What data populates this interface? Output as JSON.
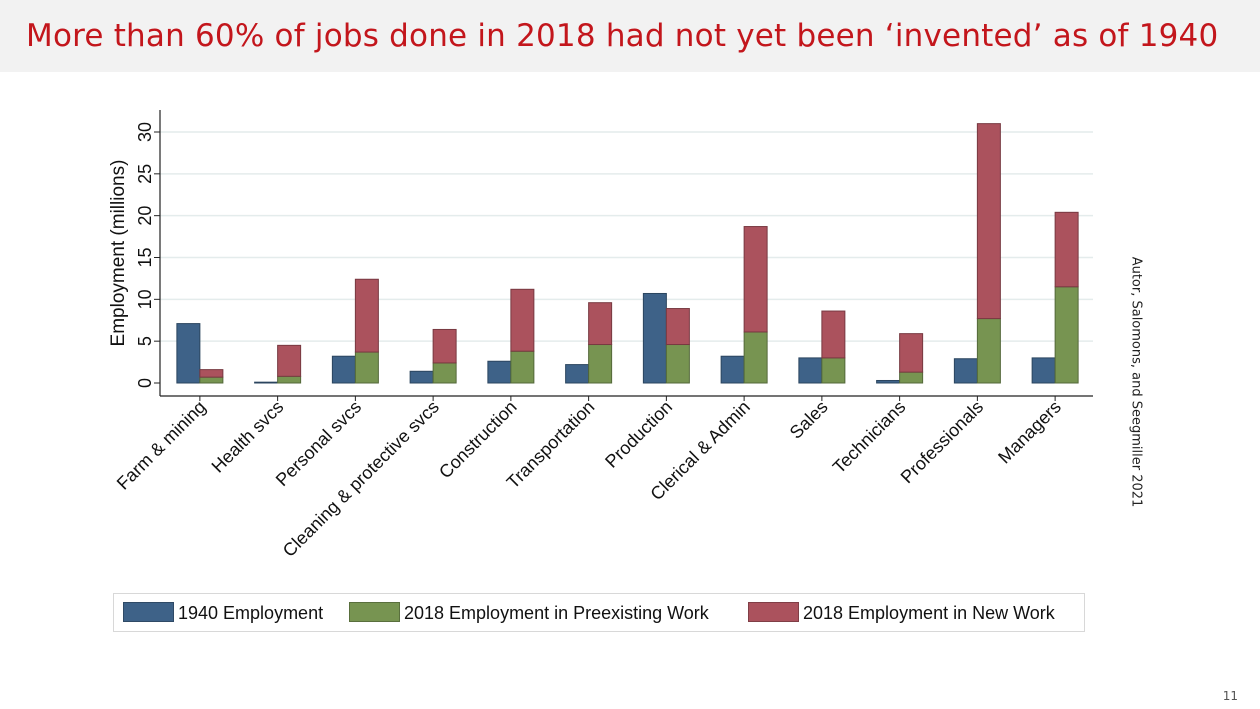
{
  "slide": {
    "title": "More than 60% of jobs done in 2018 had not yet been ‘invented’ as of 1940",
    "citation": "Autor, Salomons, and Seegmiller 2021",
    "page_number": "11"
  },
  "colors": {
    "title": "#c3161c",
    "series_1940": "#3e6288",
    "series_preexisting": "#779451",
    "series_new": "#ab525d",
    "grid": "#e4ecec"
  },
  "legend": {
    "items": [
      {
        "label": "1940 Employment",
        "color": "#3e6288"
      },
      {
        "label": "2018 Employment in Preexisting Work",
        "color": "#779451"
      },
      {
        "label": "2018 Employment in New Work",
        "color": "#ab525d"
      }
    ]
  },
  "chart_data": {
    "type": "bar",
    "stacked_second_bar": true,
    "ylabel": "Employment (millions)",
    "xlabel": "",
    "ylim": [
      0,
      32
    ],
    "yticks": [
      0,
      5,
      10,
      15,
      20,
      25,
      30
    ],
    "grid": true,
    "legend_position": "bottom",
    "categories": [
      "Farm & mining",
      "Health svcs",
      "Personal svcs",
      "Cleaning & protective svcs",
      "Construction",
      "Transportation",
      "Production",
      "Clerical & Admin",
      "Sales",
      "Technicians",
      "Professionals",
      "Managers"
    ],
    "series": [
      {
        "name": "1940 Employment",
        "stack": "1940",
        "values": [
          7.1,
          0.1,
          3.2,
          1.4,
          2.6,
          2.2,
          10.7,
          3.2,
          3.0,
          0.3,
          2.9,
          3.0
        ]
      },
      {
        "name": "2018 Employment in Preexisting Work",
        "stack": "2018",
        "values": [
          0.7,
          0.8,
          3.7,
          2.4,
          3.8,
          4.6,
          4.6,
          6.1,
          3.0,
          1.3,
          7.7,
          11.5
        ]
      },
      {
        "name": "2018 Employment in New Work",
        "stack": "2018",
        "values": [
          0.9,
          3.7,
          8.7,
          4.0,
          7.4,
          5.0,
          4.3,
          12.6,
          5.6,
          4.6,
          23.3,
          8.9
        ]
      }
    ]
  }
}
